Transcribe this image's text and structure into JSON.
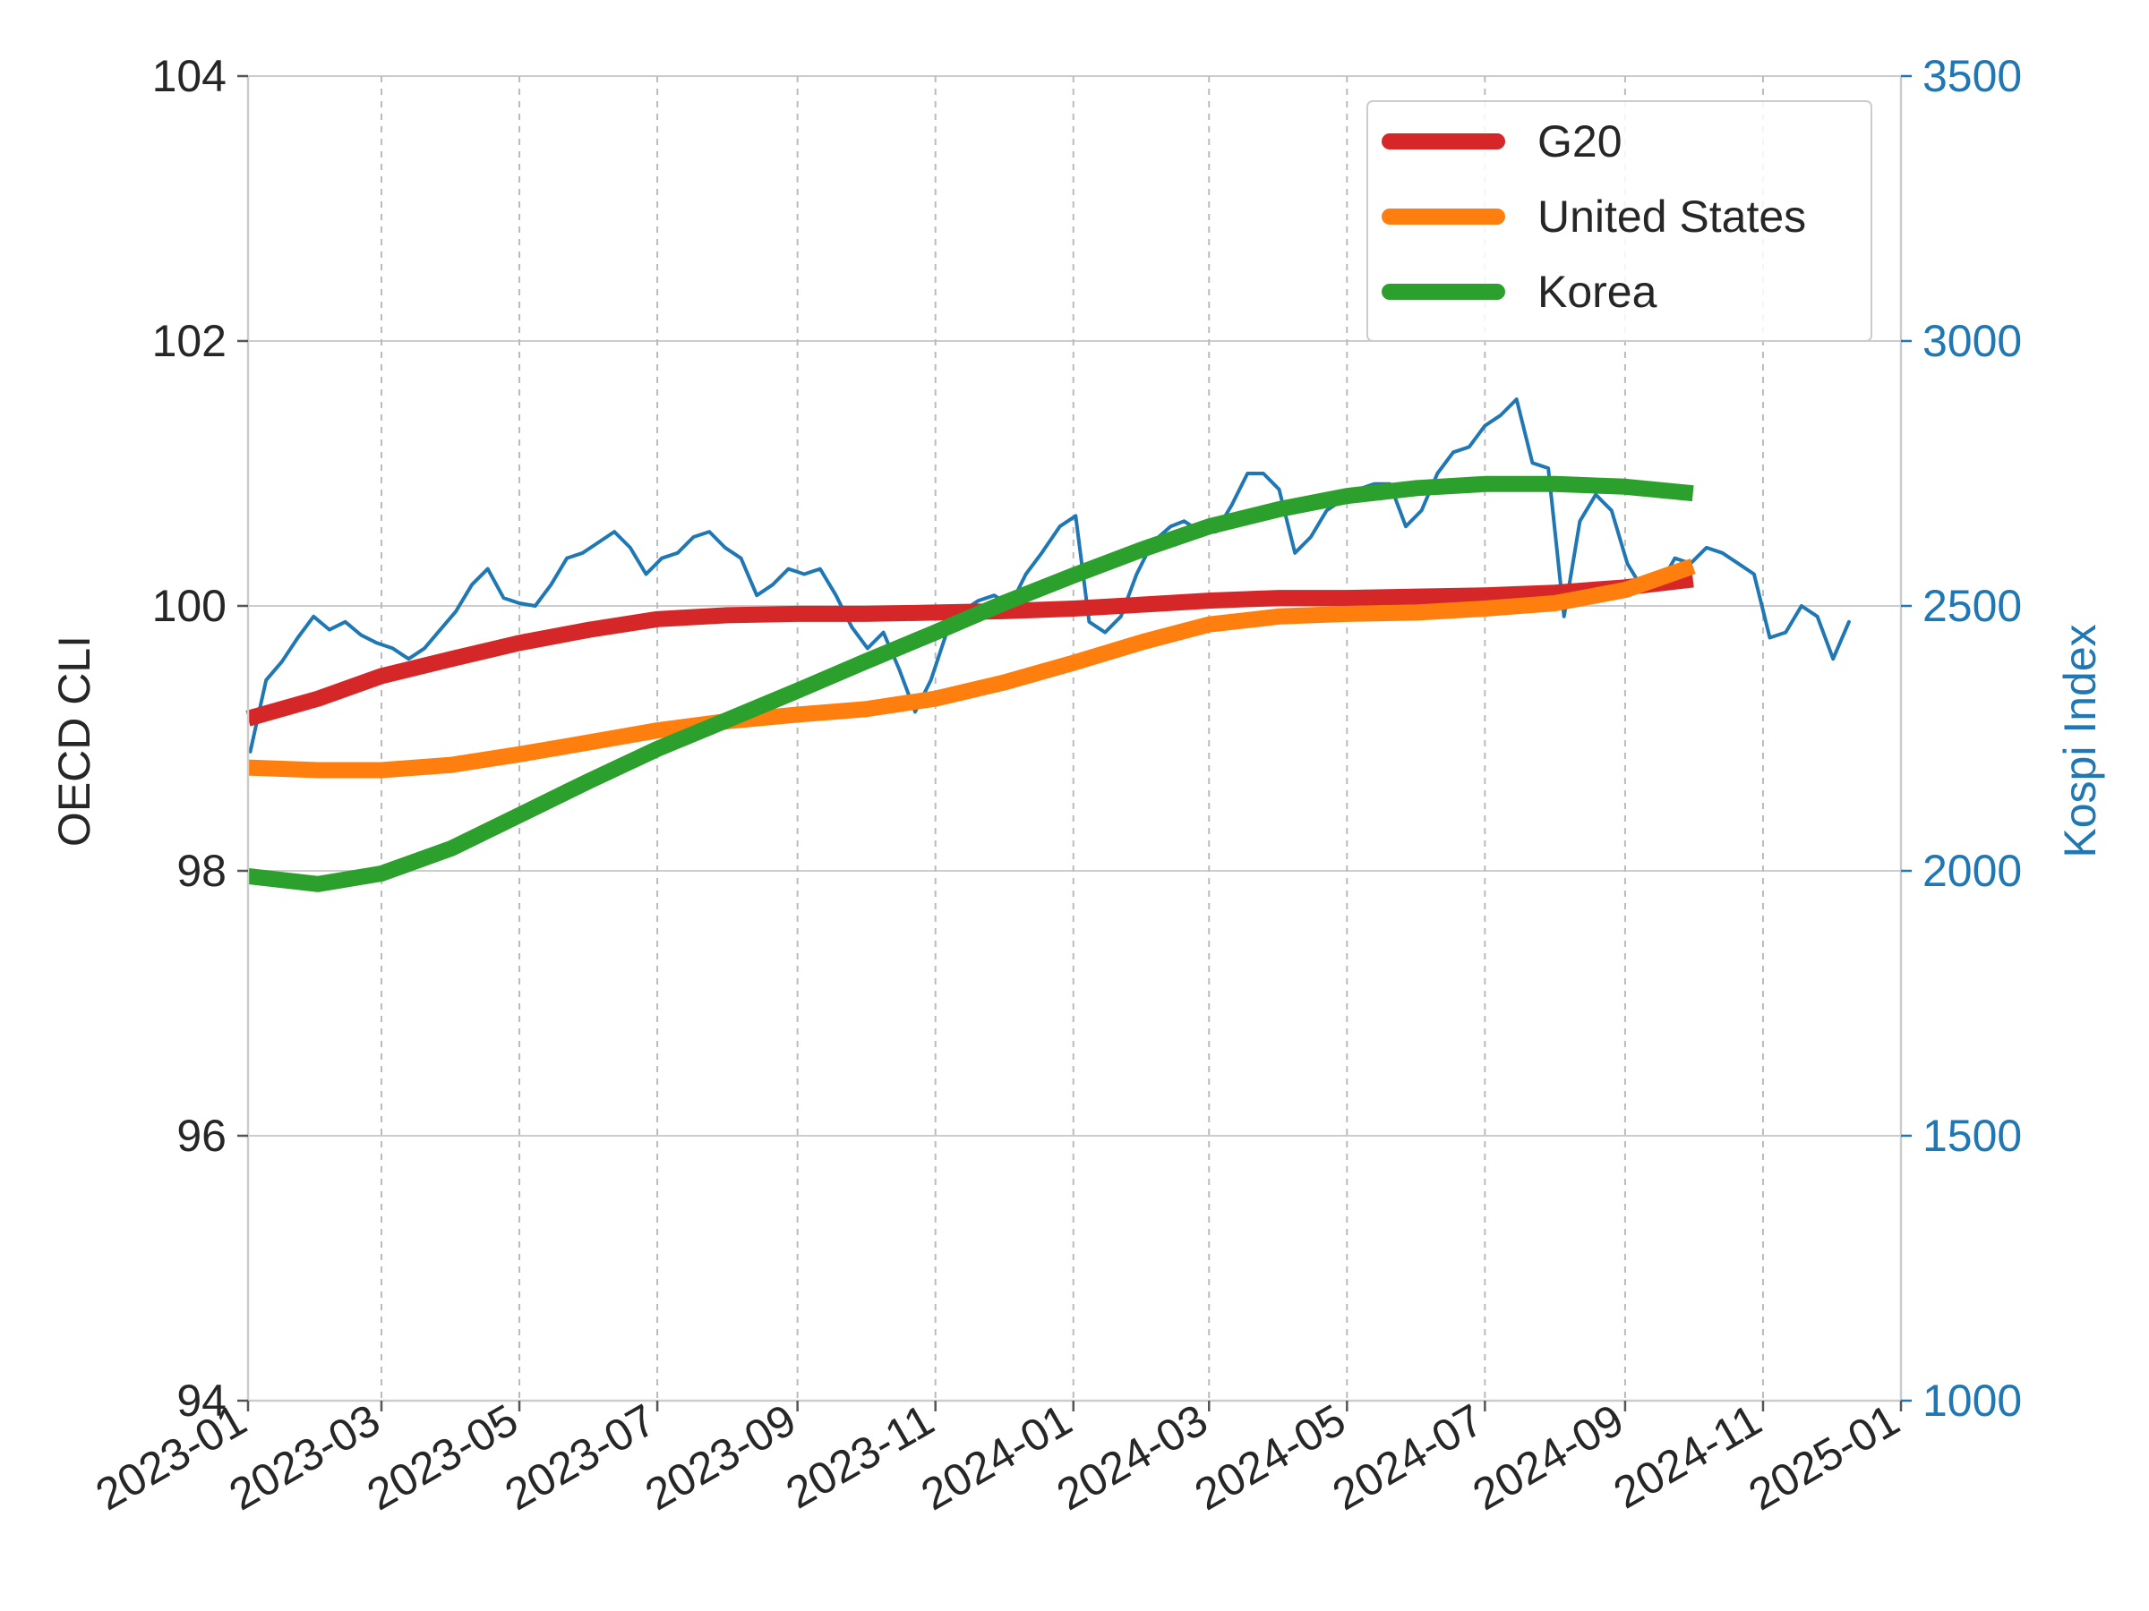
{
  "chart_data": {
    "type": "line",
    "grid": true,
    "legend_position": "top-right",
    "x_axis": {
      "type": "date",
      "range": [
        "2023-01",
        "2025-01"
      ],
      "tick_labels": [
        "2023-01",
        "2023-03",
        "2023-05",
        "2023-07",
        "2023-09",
        "2023-11",
        "2024-01",
        "2024-03",
        "2024-05",
        "2024-07",
        "2024-09",
        "2024-11",
        "2025-01"
      ]
    },
    "y_axis_left": {
      "label": "OECD CLI",
      "range": [
        94,
        104
      ],
      "ticks": [
        94,
        96,
        98,
        100,
        102,
        104
      ]
    },
    "y_axis_right": {
      "label": "Kospi Index",
      "range": [
        1000,
        3500
      ],
      "ticks": [
        1000,
        1500,
        2000,
        2500,
        3000,
        3500
      ],
      "color": "#1f77b4"
    },
    "series": [
      {
        "name": "G20",
        "axis": "left",
        "color": "#d62728",
        "x": [
          "2023-01",
          "2023-02",
          "2023-03",
          "2023-04",
          "2023-05",
          "2023-06",
          "2023-07",
          "2023-08",
          "2023-09",
          "2023-10",
          "2023-11",
          "2023-12",
          "2024-01",
          "2024-02",
          "2024-03",
          "2024-04",
          "2024-05",
          "2024-06",
          "2024-07",
          "2024-08",
          "2024-09",
          "2024-10"
        ],
        "values": [
          99.15,
          99.3,
          99.47,
          99.6,
          99.72,
          99.82,
          99.9,
          99.93,
          99.94,
          99.94,
          99.95,
          99.96,
          99.98,
          100.01,
          100.04,
          100.06,
          100.06,
          100.07,
          100.08,
          100.1,
          100.14,
          100.2
        ]
      },
      {
        "name": "United States",
        "axis": "left",
        "color": "#ff7f0e",
        "x": [
          "2023-01",
          "2023-02",
          "2023-03",
          "2023-04",
          "2023-05",
          "2023-06",
          "2023-07",
          "2023-08",
          "2023-09",
          "2023-10",
          "2023-11",
          "2023-12",
          "2024-01",
          "2024-02",
          "2024-03",
          "2024-04",
          "2024-05",
          "2024-06",
          "2024-07",
          "2024-08",
          "2024-09",
          "2024-10"
        ],
        "values": [
          98.78,
          98.76,
          98.76,
          98.8,
          98.88,
          98.97,
          99.06,
          99.13,
          99.18,
          99.22,
          99.3,
          99.42,
          99.57,
          99.73,
          99.86,
          99.92,
          99.94,
          99.95,
          99.98,
          100.02,
          100.12,
          100.3
        ]
      },
      {
        "name": "Korea",
        "axis": "left",
        "color": "#2ca02c",
        "x": [
          "2023-01",
          "2023-02",
          "2023-03",
          "2023-04",
          "2023-05",
          "2023-06",
          "2023-07",
          "2023-08",
          "2023-09",
          "2023-10",
          "2023-11",
          "2023-12",
          "2024-01",
          "2024-02",
          "2024-03",
          "2024-04",
          "2024-05",
          "2024-06",
          "2024-07",
          "2024-08",
          "2024-09",
          "2024-10"
        ],
        "values": [
          97.96,
          97.9,
          97.98,
          98.17,
          98.42,
          98.68,
          98.92,
          99.14,
          99.36,
          99.58,
          99.8,
          100.02,
          100.23,
          100.43,
          100.6,
          100.73,
          100.83,
          100.89,
          100.92,
          100.92,
          100.9,
          100.85
        ]
      },
      {
        "name": "",
        "axis": "right",
        "color": "#1f77b4",
        "x": [
          "2023-01-02",
          "2023-01-09",
          "2023-01-16",
          "2023-01-23",
          "2023-01-30",
          "2023-02-06",
          "2023-02-13",
          "2023-02-20",
          "2023-02-27",
          "2023-03-06",
          "2023-03-13",
          "2023-03-20",
          "2023-03-27",
          "2023-04-03",
          "2023-04-10",
          "2023-04-17",
          "2023-04-24",
          "2023-05-01",
          "2023-05-08",
          "2023-05-15",
          "2023-05-22",
          "2023-05-29",
          "2023-06-05",
          "2023-06-12",
          "2023-06-19",
          "2023-06-26",
          "2023-07-03",
          "2023-07-10",
          "2023-07-17",
          "2023-07-24",
          "2023-07-31",
          "2023-08-07",
          "2023-08-14",
          "2023-08-21",
          "2023-08-28",
          "2023-09-04",
          "2023-09-11",
          "2023-09-18",
          "2023-09-25",
          "2023-10-02",
          "2023-10-09",
          "2023-10-16",
          "2023-10-23",
          "2023-10-30",
          "2023-11-06",
          "2023-11-13",
          "2023-11-20",
          "2023-11-27",
          "2023-12-04",
          "2023-12-11",
          "2023-12-18",
          "2023-12-26",
          "2024-01-02",
          "2024-01-08",
          "2024-01-15",
          "2024-01-22",
          "2024-01-29",
          "2024-02-05",
          "2024-02-13",
          "2024-02-19",
          "2024-02-26",
          "2024-03-04",
          "2024-03-11",
          "2024-03-18",
          "2024-03-25",
          "2024-04-01",
          "2024-04-08",
          "2024-04-15",
          "2024-04-22",
          "2024-04-29",
          "2024-05-06",
          "2024-05-13",
          "2024-05-20",
          "2024-05-27",
          "2024-06-03",
          "2024-06-10",
          "2024-06-17",
          "2024-06-24",
          "2024-07-01",
          "2024-07-08",
          "2024-07-15",
          "2024-07-22",
          "2024-07-29",
          "2024-08-05",
          "2024-08-12",
          "2024-08-19",
          "2024-08-26",
          "2024-09-02",
          "2024-09-09",
          "2024-09-19",
          "2024-09-23",
          "2024-09-30",
          "2024-10-07",
          "2024-10-14",
          "2024-10-21",
          "2024-10-28",
          "2024-11-04",
          "2024-11-11",
          "2024-11-18",
          "2024-11-25",
          "2024-12-02",
          "2024-12-09"
        ],
        "values": [
          2225,
          2360,
          2395,
          2440,
          2480,
          2455,
          2470,
          2445,
          2430,
          2420,
          2400,
          2420,
          2455,
          2490,
          2540,
          2570,
          2515,
          2505,
          2500,
          2540,
          2590,
          2600,
          2620,
          2640,
          2610,
          2560,
          2590,
          2600,
          2630,
          2640,
          2610,
          2590,
          2520,
          2540,
          2570,
          2560,
          2570,
          2520,
          2460,
          2420,
          2450,
          2380,
          2300,
          2360,
          2450,
          2490,
          2510,
          2520,
          2500,
          2560,
          2600,
          2650,
          2670,
          2470,
          2450,
          2480,
          2560,
          2620,
          2650,
          2660,
          2640,
          2640,
          2690,
          2750,
          2750,
          2720,
          2600,
          2630,
          2680,
          2700,
          2720,
          2730,
          2730,
          2650,
          2680,
          2750,
          2790,
          2800,
          2840,
          2860,
          2890,
          2770,
          2760,
          2480,
          2660,
          2710,
          2680,
          2580,
          2530,
          2560,
          2590,
          2580,
          2610,
          2600,
          2580,
          2560,
          2440,
          2450,
          2500,
          2480,
          2400,
          2470
        ]
      }
    ]
  }
}
